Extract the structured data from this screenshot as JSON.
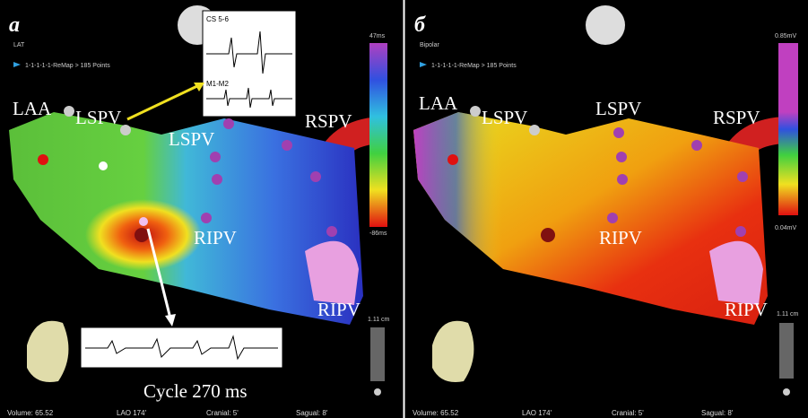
{
  "panels": [
    {
      "label": "а",
      "map_type": "LAT",
      "points": "1-1-1-1-1-ReMap > 185 Points",
      "scale_max": "47ms",
      "scale_min": "-86ms",
      "distance": "1.11 cm",
      "anatomy": [
        "LAA",
        "LSPV",
        "LSPV",
        "RSPV",
        "RIPV",
        "RIPV"
      ],
      "status": [
        "Volume: 65.52",
        "LAO 174'",
        "Cranial: 5'",
        "Sagual: 8'"
      ]
    },
    {
      "label": "б",
      "map_type": "Bipolar",
      "points": "1-1-1-1-1-ReMap > 185 Points",
      "scale_max": "0.85mV",
      "scale_min": "0.04mV",
      "distance": "1.11 cm",
      "anatomy": [
        "LAA",
        "LSPV",
        "LSPV",
        "RSPV",
        "RIPV",
        "RIPV"
      ],
      "status": [
        "Volume: 65.52",
        "LAO 174'",
        "Cranial: 5'",
        "Sagual: 8'"
      ]
    }
  ],
  "insets": {
    "channels": [
      "CS 5-6",
      "M1-M2"
    ],
    "cycle": "Cycle 270 ms"
  }
}
